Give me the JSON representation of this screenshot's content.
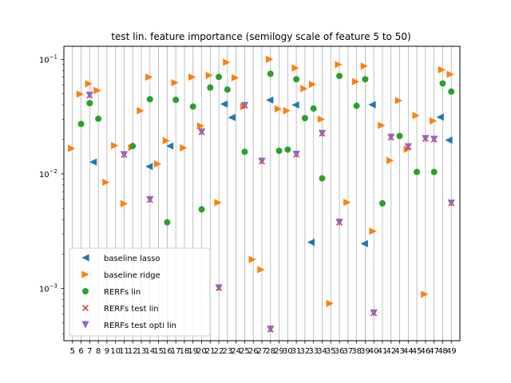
{
  "chart_data": {
    "type": "scatter",
    "title": "test lin. feature importance (semilogy scale of feature 5 to 50)",
    "xlabel": "",
    "ylabel": "",
    "yscale": "log",
    "ylim": [
      0.00035,
      0.13
    ],
    "xlim": [
      4.0,
      50.0
    ],
    "x_ticks": [
      5,
      6,
      7,
      8,
      9,
      10,
      11,
      12,
      13,
      14,
      15,
      16,
      17,
      18,
      19,
      20,
      21,
      22,
      23,
      24,
      25,
      26,
      27,
      28,
      29,
      30,
      31,
      32,
      33,
      34,
      35,
      36,
      37,
      38,
      39,
      40,
      41,
      42,
      43,
      44,
      45,
      46,
      47,
      48,
      49
    ],
    "y_ticks": [
      {
        "value": 0.001,
        "label": "10"
      },
      {
        "value": 0.01,
        "label": "10"
      },
      {
        "value": 0.1,
        "label": "10"
      }
    ],
    "y_tick_exponents": [
      "−3",
      "−2",
      "−1"
    ],
    "grid": "vertical",
    "legend_position": "lower-left",
    "series": [
      {
        "name": "baseline lasso",
        "marker": "triangle-left",
        "color": "#1f77b4",
        "x": [
          7.4,
          13.9,
          16.3,
          22.6,
          23.5,
          27.9,
          30.9,
          32.7,
          38.9,
          39.8,
          47.7,
          48.7
        ],
        "y": [
          0.0127,
          0.0116,
          0.0175,
          0.0407,
          0.0311,
          0.0441,
          0.04,
          0.00253,
          0.00246,
          0.0402,
          0.0313,
          0.0197
        ]
      },
      {
        "name": "baseline ridge",
        "marker": "triangle-right",
        "color": "#ff7f0e",
        "x": [
          4.9,
          5.9,
          6.9,
          7.9,
          8.9,
          9.9,
          11.0,
          11.9,
          12.9,
          13.9,
          14.9,
          15.9,
          16.9,
          17.9,
          18.9,
          19.9,
          20.9,
          21.9,
          22.9,
          23.9,
          24.9,
          25.9,
          26.9,
          27.9,
          28.9,
          29.9,
          30.9,
          31.9,
          32.9,
          33.9,
          34.9,
          35.9,
          36.9,
          37.9,
          38.9,
          39.9,
          40.9,
          41.9,
          42.9,
          43.9,
          44.9,
          45.9,
          46.9,
          47.9,
          48.9
        ],
        "y": [
          0.0167,
          0.0497,
          0.0612,
          0.0535,
          0.00845,
          0.0177,
          0.0055,
          0.017,
          0.0356,
          0.07,
          0.0122,
          0.0195,
          0.0625,
          0.0169,
          0.07,
          0.0262,
          0.0725,
          0.00562,
          0.0942,
          0.0691,
          0.0387,
          0.00179,
          0.00146,
          0.1,
          0.0369,
          0.0356,
          0.084,
          0.0555,
          0.0605,
          0.03,
          0.00074,
          0.09,
          0.00564,
          0.0638,
          0.0873,
          0.00316,
          0.0265,
          0.0131,
          0.0437,
          0.0164,
          0.0323,
          0.00089,
          0.029,
          0.0812,
          0.074
        ]
      },
      {
        "name": "RERFs lin",
        "marker": "circle",
        "color": "#2ca02c",
        "x": [
          6,
          7,
          8,
          12,
          14,
          16,
          17,
          19,
          20,
          21,
          22,
          23,
          25,
          28,
          29,
          30,
          31,
          32,
          33,
          34,
          36,
          38,
          39,
          41,
          43,
          45,
          47,
          48,
          49
        ],
        "y": [
          0.0273,
          0.0414,
          0.0303,
          0.0175,
          0.0448,
          0.00378,
          0.0443,
          0.0387,
          0.0049,
          0.0567,
          0.0702,
          0.0545,
          0.0156,
          0.0748,
          0.0159,
          0.0163,
          0.067,
          0.0307,
          0.0372,
          0.00914,
          0.0716,
          0.0393,
          0.067,
          0.00553,
          0.0214,
          0.0104,
          0.0104,
          0.0616,
          0.0523
        ]
      },
      {
        "name": "RERFs test lin",
        "marker": "x",
        "color": "#d62728",
        "x": [
          7,
          11,
          14,
          20,
          22,
          25,
          27,
          28,
          31,
          34,
          36,
          40,
          42,
          44,
          46,
          47,
          49
        ],
        "y": [
          0.0485,
          0.0147,
          0.00595,
          0.0232,
          0.00101,
          0.0394,
          0.0129,
          0.00044,
          0.0148,
          0.0225,
          0.00377,
          0.00061,
          0.0208,
          0.0172,
          0.0203,
          0.02,
          0.00555
        ]
      },
      {
        "name": "RERFs test opti lin",
        "marker": "triangle-down",
        "color": "#9467bd",
        "x": [
          7,
          11,
          14,
          20,
          22,
          25,
          27,
          28,
          31,
          34,
          36,
          40,
          42,
          44,
          46,
          47,
          49
        ],
        "y": [
          0.0485,
          0.0147,
          0.00595,
          0.0232,
          0.00101,
          0.0394,
          0.0129,
          0.00044,
          0.0148,
          0.0225,
          0.00377,
          0.00061,
          0.0208,
          0.0172,
          0.0203,
          0.02,
          0.00555
        ]
      }
    ]
  }
}
